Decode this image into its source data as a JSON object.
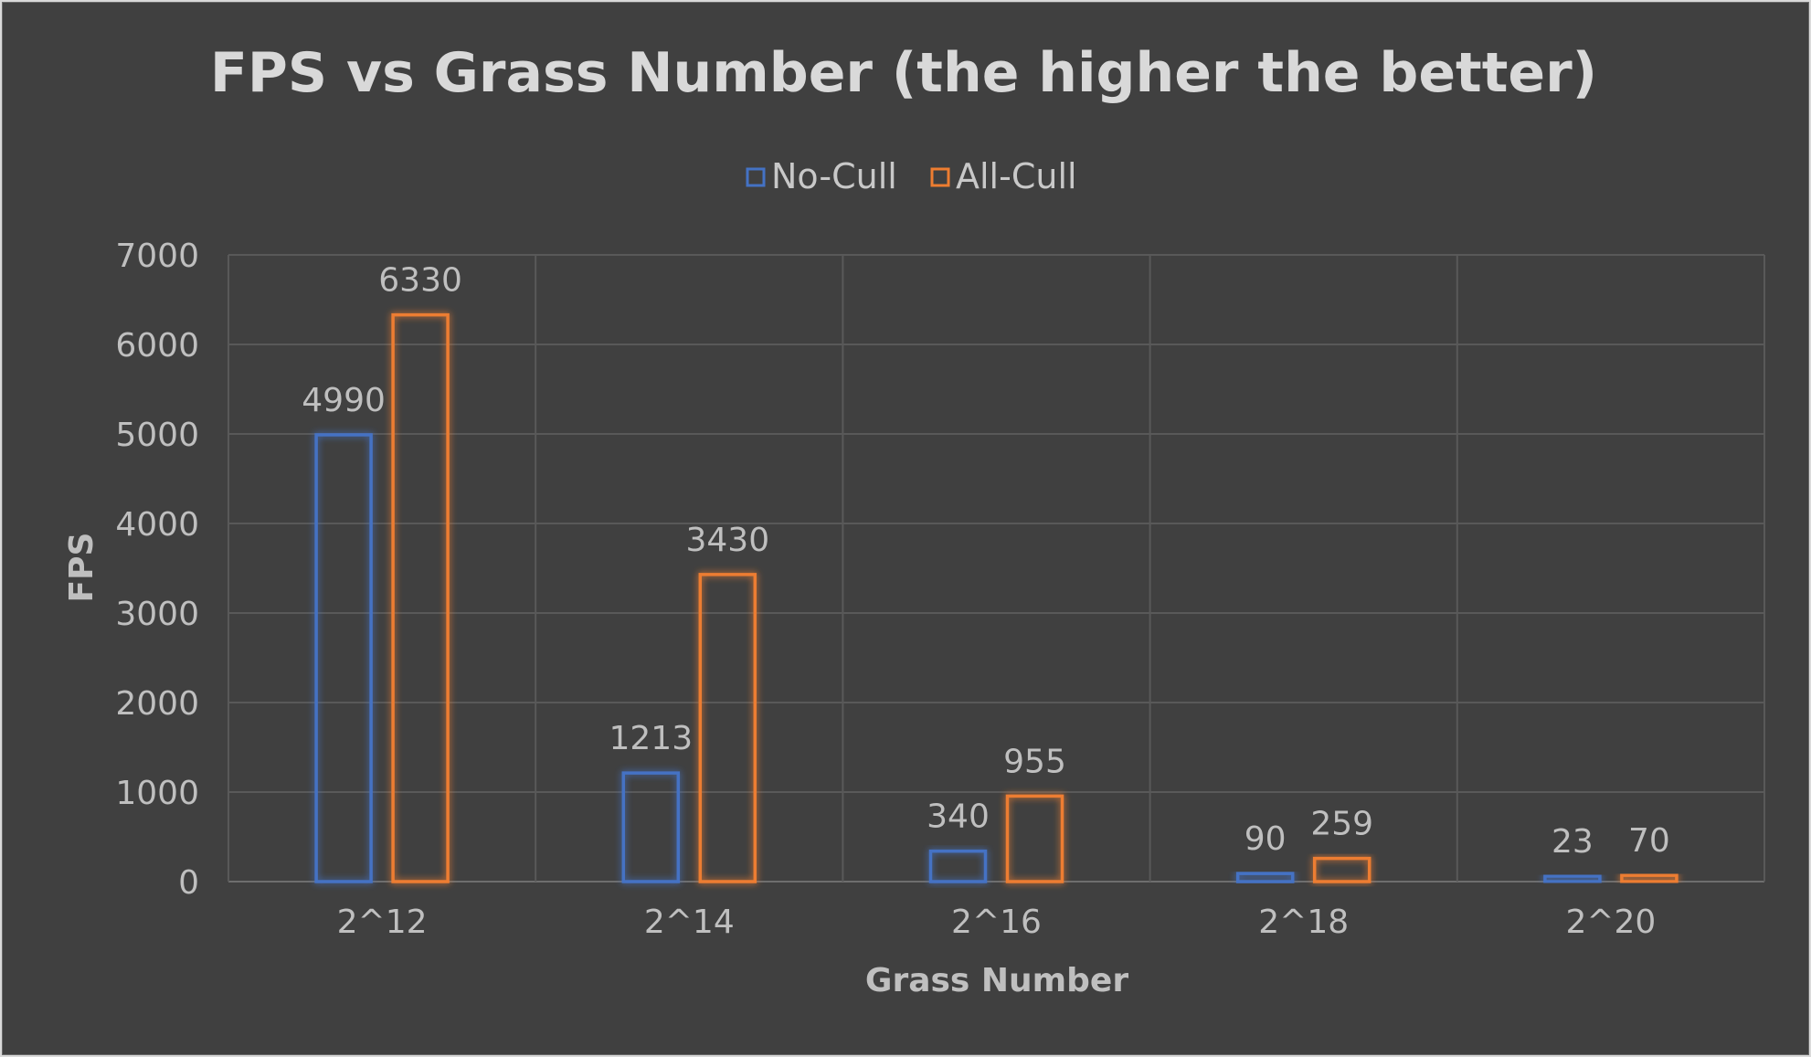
{
  "chart_data": {
    "type": "bar",
    "title": "FPS vs Grass Number (the higher the better)",
    "xlabel": "Grass Number",
    "ylabel": "FPS",
    "categories": [
      "2^12",
      "2^14",
      "2^16",
      "2^18",
      "2^20"
    ],
    "series": [
      {
        "name": "No-Cull",
        "values": [
          4990,
          1213,
          340,
          90,
          23
        ],
        "color": "#4472c4"
      },
      {
        "name": "All-Cull",
        "values": [
          6330,
          3430,
          955,
          259,
          70
        ],
        "color": "#ed7d31"
      }
    ],
    "ylim": [
      0,
      7000
    ],
    "yticks": [
      "0",
      "1000",
      "2000",
      "3000",
      "4000",
      "5000",
      "6000",
      "7000"
    ],
    "grid": true,
    "legend": "top-center",
    "background": "#404040"
  }
}
